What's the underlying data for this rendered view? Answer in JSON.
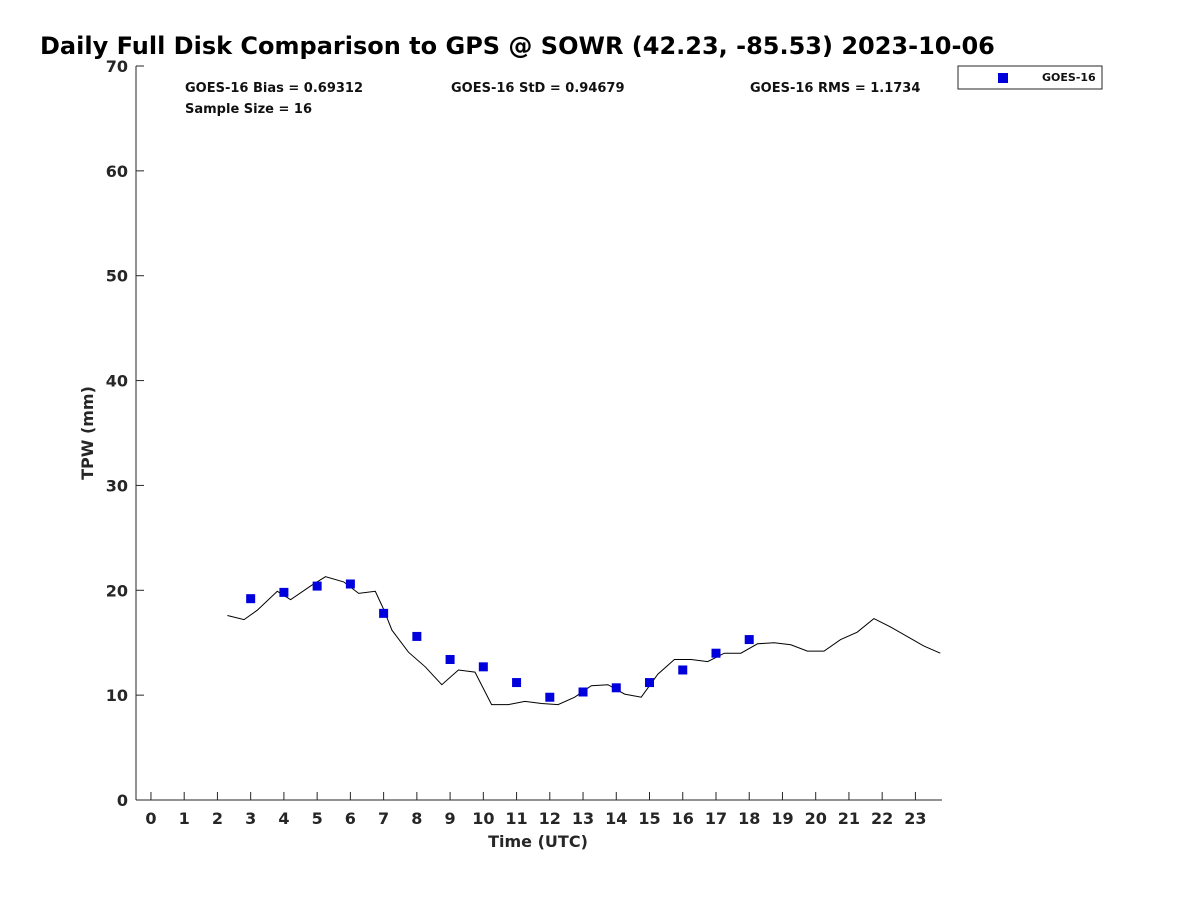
{
  "chart_data": {
    "type": "scatter",
    "title": "Daily Full Disk Comparison to GPS @ SOWR (42.23, -85.53) 2023-10-06",
    "xlabel": "Time (UTC)",
    "ylabel": "TPW (mm)",
    "xlim": [
      -0.45,
      23.8
    ],
    "ylim": [
      0,
      70
    ],
    "x_ticks": [
      0,
      1,
      2,
      3,
      4,
      5,
      6,
      7,
      8,
      9,
      10,
      11,
      12,
      13,
      14,
      15,
      16,
      17,
      18,
      19,
      20,
      21,
      22,
      23
    ],
    "x_tick_labels": [
      "0",
      "1",
      "2",
      "3",
      "4",
      "5",
      "6",
      "7",
      "8",
      "9",
      "10",
      "11",
      "12",
      "13",
      "14",
      "15",
      "16",
      "17",
      "18",
      "19",
      "20",
      "21",
      "22",
      "23"
    ],
    "y_ticks": [
      0,
      10,
      20,
      30,
      40,
      50,
      60,
      70
    ],
    "y_tick_labels": [
      "0",
      "10",
      "20",
      "30",
      "40",
      "50",
      "60",
      "70"
    ],
    "grid": false,
    "legend_position": "top-right",
    "stats": {
      "bias": "GOES-16 Bias = 0.69312",
      "std": "GOES-16 StD = 0.94679",
      "rms": "GOES-16 RMS = 1.1734",
      "sample_size": "Sample Size = 16"
    },
    "series": [
      {
        "name": "GOES-16",
        "kind": "scatter",
        "color": "#0000dd",
        "marker": "square",
        "x": [
          3.0,
          4.0,
          5.0,
          6.0,
          7.0,
          8.0,
          9.0,
          10.0,
          11.0,
          12.0,
          13.0,
          14.0,
          15.0,
          16.0,
          17.0,
          18.0
        ],
        "y": [
          19.2,
          19.8,
          20.4,
          20.6,
          17.8,
          15.6,
          13.4,
          12.7,
          11.2,
          9.8,
          10.3,
          10.7,
          11.2,
          12.4,
          14.0,
          15.3
        ]
      },
      {
        "kind": "line",
        "color": "#000000",
        "x": [
          2.3,
          2.8,
          3.2,
          3.8,
          4.2,
          4.8,
          5.25,
          5.8,
          6.25,
          6.75,
          7.0,
          7.25,
          7.75,
          8.25,
          8.75,
          9.25,
          9.75,
          10.25,
          10.75,
          11.25,
          11.75,
          12.25,
          12.75,
          13.25,
          13.75,
          14.25,
          14.75,
          15.25,
          15.75,
          16.25,
          16.75,
          17.25,
          17.75,
          18.25,
          18.75,
          19.25,
          19.75,
          20.25,
          20.75,
          21.25,
          21.75,
          22.25,
          22.75,
          23.25,
          23.75
        ],
        "y": [
          17.6,
          17.2,
          18.1,
          19.9,
          19.1,
          20.4,
          21.3,
          20.8,
          19.7,
          19.9,
          18.2,
          16.2,
          14.1,
          12.7,
          11.0,
          12.4,
          12.2,
          9.1,
          9.1,
          9.4,
          9.2,
          9.1,
          9.8,
          10.9,
          11.0,
          10.1,
          9.8,
          12.0,
          13.4,
          13.4,
          13.2,
          14.0,
          14.0,
          14.9,
          15.0,
          14.8,
          14.2,
          14.2,
          15.3,
          16.0,
          17.3,
          16.5,
          15.6,
          14.7,
          14.0
        ]
      }
    ]
  }
}
